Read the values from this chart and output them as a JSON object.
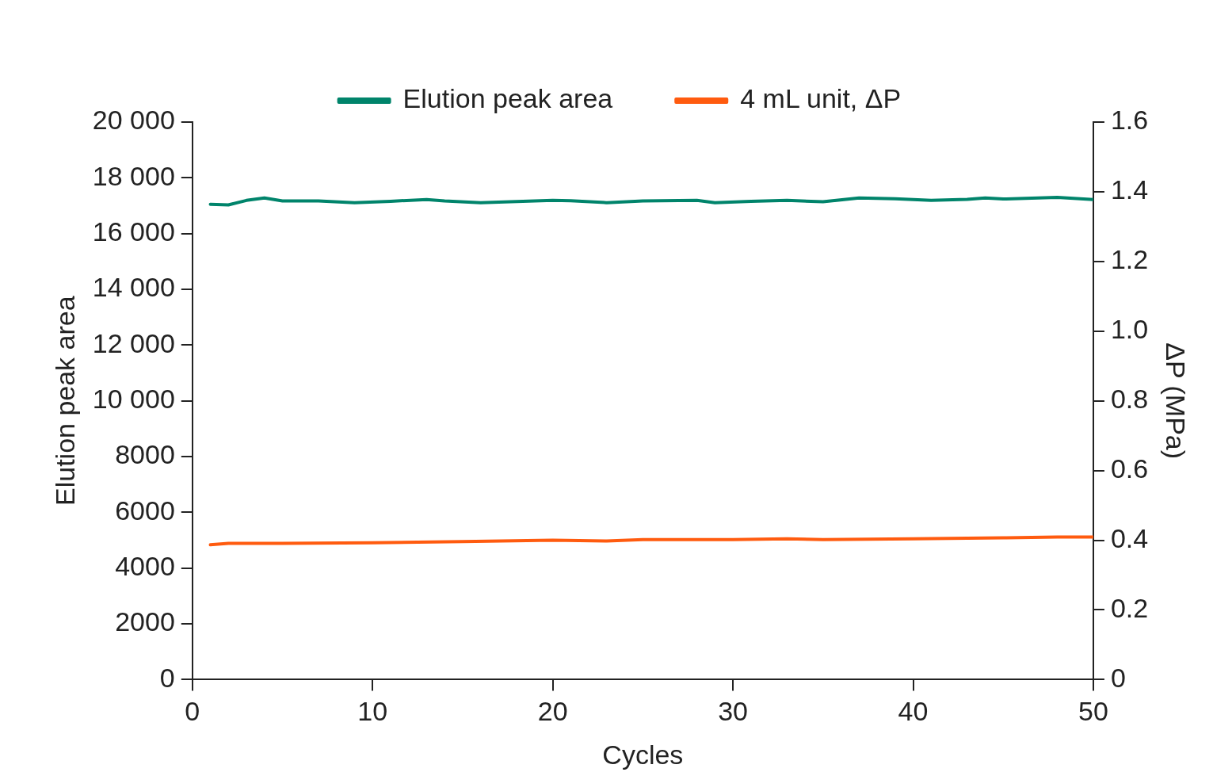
{
  "chart_data": {
    "type": "line",
    "xlabel": "Cycles",
    "ylabel": "Elution peak area",
    "y2label": "ΔP (MPa)",
    "xlim": [
      0,
      50
    ],
    "xticks": [
      0,
      10,
      20,
      30,
      40,
      50
    ],
    "ylim": [
      0,
      20000
    ],
    "yticks": [
      0,
      2000,
      4000,
      6000,
      8000,
      {
        "value": 10000,
        "label": "10 000"
      },
      {
        "value": 12000,
        "label": "12 000"
      },
      {
        "value": 14000,
        "label": "14 000"
      },
      {
        "value": 16000,
        "label": "16 000"
      },
      {
        "value": 18000,
        "label": "18 000"
      },
      {
        "value": 20000,
        "label": "20 000"
      }
    ],
    "y2lim": [
      0,
      1.6
    ],
    "y2ticks": [
      0,
      0.2,
      0.4,
      0.6,
      0.8,
      {
        "value": 1,
        "label": "1.0"
      },
      1.2,
      1.4,
      1.6
    ],
    "grid": false,
    "legend": "top",
    "marker": "none",
    "line_style": "solid",
    "series": [
      {
        "name": "Elution peak area",
        "color": "#00846b",
        "x": [
          1,
          2,
          3,
          4,
          5,
          7,
          9,
          11,
          13,
          14,
          16,
          18,
          20,
          21,
          23,
          25,
          28,
          29,
          31,
          33,
          35,
          37,
          39,
          41,
          43,
          44,
          45,
          48,
          50
        ],
        "values": [
          17050,
          17030,
          17190,
          17280,
          17170,
          17170,
          17110,
          17160,
          17220,
          17170,
          17110,
          17150,
          17190,
          17180,
          17110,
          17170,
          17190,
          17110,
          17160,
          17190,
          17140,
          17280,
          17250,
          17190,
          17230,
          17280,
          17240,
          17300,
          17220
        ]
      },
      {
        "name": "4 mL unit, ΔP",
        "color": "#ff5b0f",
        "axis": "y2",
        "x": [
          1,
          2,
          5,
          10,
          15,
          20,
          23,
          25,
          30,
          33,
          35,
          40,
          45,
          48,
          50
        ],
        "values": [
          0.387,
          0.391,
          0.391,
          0.393,
          0.396,
          0.4,
          0.398,
          0.402,
          0.402,
          0.404,
          0.402,
          0.404,
          0.407,
          0.409,
          0.409
        ]
      }
    ]
  }
}
